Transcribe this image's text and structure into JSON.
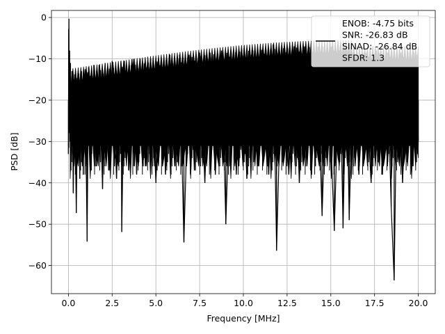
{
  "chart_data": {
    "type": "line",
    "title": "",
    "xlabel": "Frequency [MHz]",
    "ylabel": "PSD [dB]",
    "xlim": [
      -0.97,
      20.97
    ],
    "ylim": [
      -66.8,
      1.7
    ],
    "xticks": [
      0.0,
      2.5,
      5.0,
      7.5,
      10.0,
      12.5,
      15.0,
      17.5,
      20.0
    ],
    "xtick_labels": [
      "0.0",
      "2.5",
      "5.0",
      "7.5",
      "10.0",
      "12.5",
      "15.0",
      "17.5",
      "20.0"
    ],
    "yticks": [
      0,
      -10,
      -20,
      -30,
      -40,
      -50,
      -60
    ],
    "ytick_labels": [
      "0",
      "−10",
      "−20",
      "−30",
      "−40",
      "−50",
      "−60"
    ],
    "grid": true,
    "legend_position": "top-right",
    "series": [
      {
        "name": "ENOB: -4.75 bits\nSNR: -26.83 dB\nSINAD: -26.84 dB\nSFDR: 1.3",
        "color": "#000000",
        "points": [
          [
            0.0,
            -33.0
          ],
          [
            0.01,
            -2.8
          ],
          [
            0.02,
            -31.5
          ],
          [
            0.03,
            -0.3
          ],
          [
            0.05,
            -28.0
          ],
          [
            0.07,
            -8.0
          ],
          [
            0.09,
            -30.0
          ],
          [
            0.12,
            -11.0
          ],
          [
            0.15,
            -32.0
          ],
          [
            0.2,
            -13.0
          ],
          [
            0.28,
            -42.5
          ],
          [
            0.35,
            -15.0
          ],
          [
            0.42,
            -38.0
          ],
          [
            0.45,
            -47.3
          ],
          [
            0.55,
            -14.0
          ],
          [
            0.65,
            -39.0
          ],
          [
            0.75,
            -13.0
          ],
          [
            0.85,
            -38.0
          ],
          [
            0.95,
            -12.5
          ],
          [
            1.07,
            -54.2
          ],
          [
            1.15,
            -12.0
          ],
          [
            1.3,
            -37.0
          ],
          [
            1.45,
            -11.5
          ],
          [
            1.6,
            -36.0
          ],
          [
            1.75,
            -11.5
          ],
          [
            1.95,
            -41.5
          ],
          [
            2.1,
            -11.0
          ],
          [
            2.3,
            -37.0
          ],
          [
            2.5,
            -10.5
          ],
          [
            2.75,
            -39.0
          ],
          [
            3.0,
            -10.5
          ],
          [
            3.05,
            -51.9
          ],
          [
            3.2,
            -10.5
          ],
          [
            3.45,
            -37.0
          ],
          [
            3.7,
            -10.0
          ],
          [
            3.9,
            -38.0
          ],
          [
            4.1,
            -10.0
          ],
          [
            4.4,
            -36.0
          ],
          [
            4.7,
            -10.0
          ],
          [
            5.0,
            -40.0
          ],
          [
            5.3,
            -9.5
          ],
          [
            5.55,
            -38.0
          ],
          [
            5.8,
            -9.0
          ],
          [
            6.1,
            -36.0
          ],
          [
            6.35,
            -9.0
          ],
          [
            6.6,
            -54.4
          ],
          [
            6.9,
            -9.0
          ],
          [
            7.2,
            -37.0
          ],
          [
            7.5,
            -8.5
          ],
          [
            7.8,
            -40.0
          ],
          [
            8.1,
            -8.5
          ],
          [
            8.4,
            -38.0
          ],
          [
            8.75,
            -8.0
          ],
          [
            9.0,
            -50.0
          ],
          [
            9.3,
            -8.0
          ],
          [
            9.6,
            -38.0
          ],
          [
            9.9,
            -7.5
          ],
          [
            10.2,
            -39.0
          ],
          [
            10.5,
            -7.5
          ],
          [
            10.8,
            -36.0
          ],
          [
            11.1,
            -7.5
          ],
          [
            11.45,
            -38.0
          ],
          [
            11.7,
            -6.5
          ],
          [
            11.9,
            -56.4
          ],
          [
            12.2,
            -7.0
          ],
          [
            12.6,
            -38.0
          ],
          [
            12.9,
            -7.0
          ],
          [
            13.2,
            -40.0
          ],
          [
            13.5,
            -7.0
          ],
          [
            13.9,
            -38.0
          ],
          [
            14.2,
            -7.0
          ],
          [
            14.5,
            -48.0
          ],
          [
            14.8,
            -8.0
          ],
          [
            15.2,
            -51.6
          ],
          [
            15.5,
            -8.0
          ],
          [
            15.7,
            -51.0
          ],
          [
            15.9,
            -9.0
          ],
          [
            16.05,
            -49.0
          ],
          [
            16.3,
            -7.5
          ],
          [
            16.6,
            -38.0
          ],
          [
            16.9,
            -8.5
          ],
          [
            17.3,
            -40.0
          ],
          [
            17.6,
            -8.0
          ],
          [
            17.95,
            -38.0
          ],
          [
            18.2,
            -8.5
          ],
          [
            18.45,
            -45.7
          ],
          [
            18.62,
            -63.6
          ],
          [
            18.8,
            -8.5
          ],
          [
            19.1,
            -40.0
          ],
          [
            19.4,
            -8.5
          ],
          [
            19.7,
            -36.0
          ],
          [
            19.9,
            -9.0
          ],
          [
            20.0,
            -30.0
          ]
        ]
      }
    ]
  }
}
